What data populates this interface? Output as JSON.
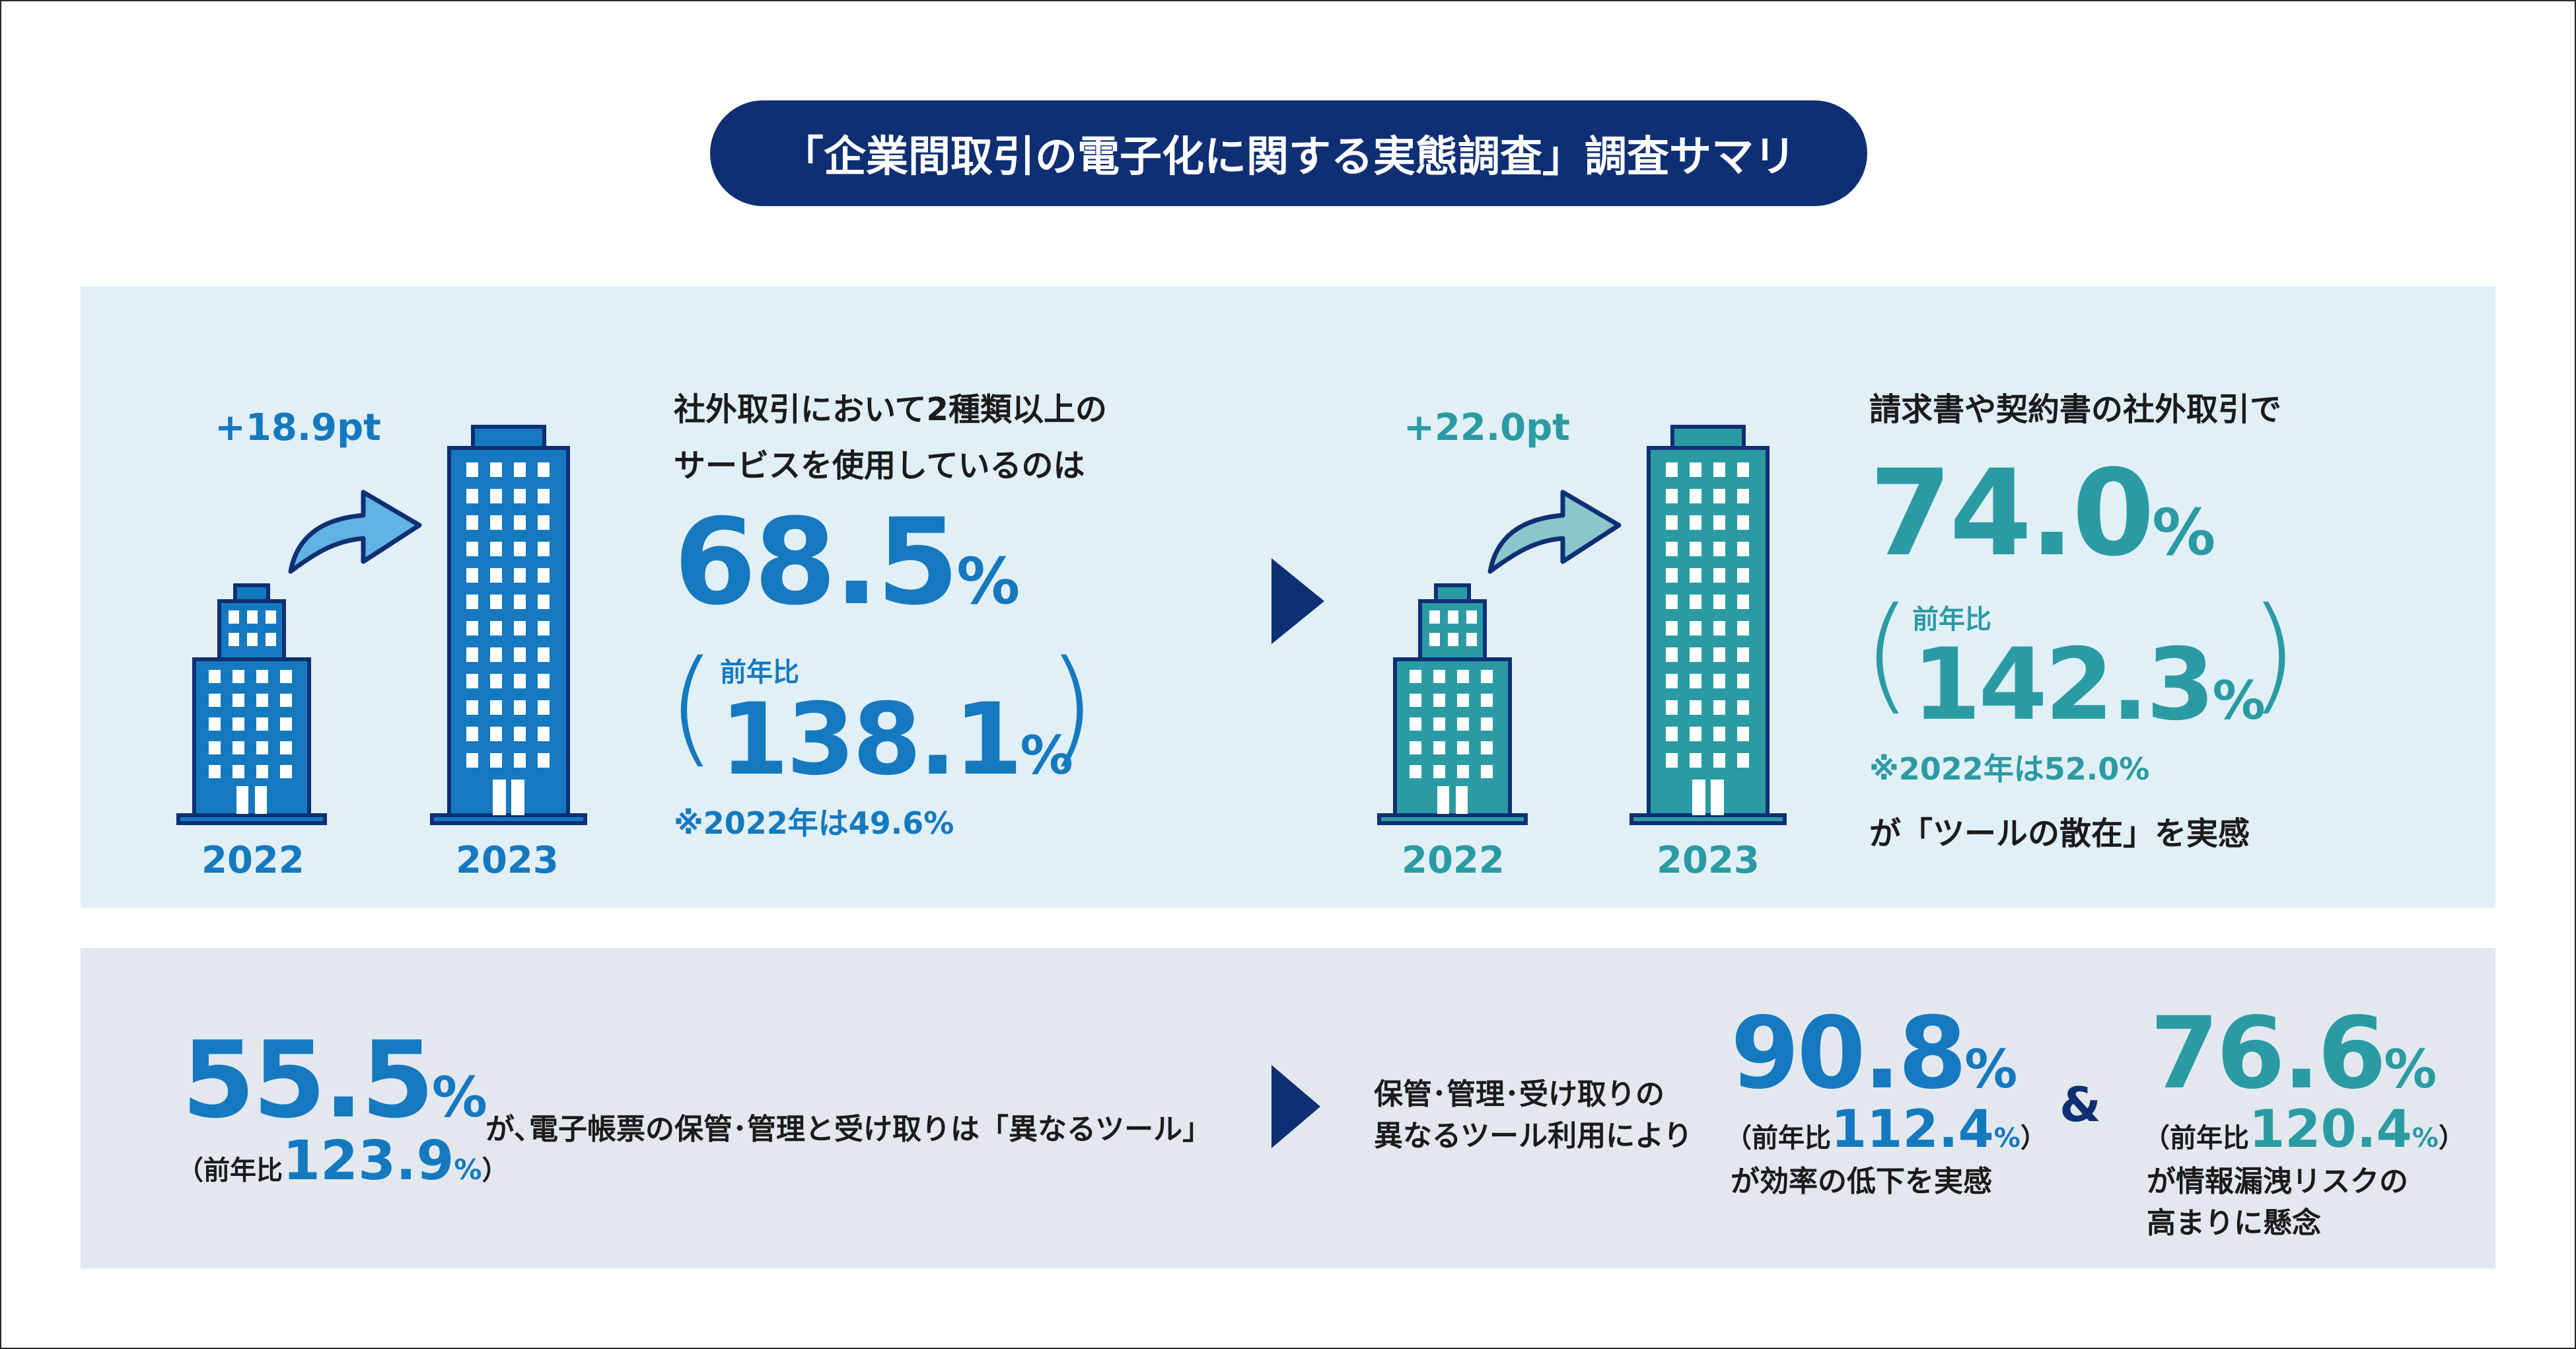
{
  "title": "「企業間取引の電子化に関する実態調査」調査サマリ",
  "colors": {
    "navy": "#0f2f74",
    "blue": "#1579bf",
    "teal": "#2b9ba3",
    "panel_top": "#e1eff7",
    "panel_bottom": "#e3e8ef"
  },
  "stat1": {
    "pt_change": "+18.9pt",
    "year_left": "2022",
    "year_right": "2023",
    "lead_line1": "社外取引において2種類以上の",
    "lead_line2": "サービスを使用しているのは",
    "value": "68.5",
    "value_unit": "%",
    "yoy_label": "前年比",
    "yoy_value": "138.1",
    "yoy_unit": "%",
    "note": "※2022年は49.6%",
    "icons": [
      "building-small-icon",
      "arrow-up-right-icon",
      "building-tall-icon"
    ]
  },
  "stat2": {
    "pt_change": "+22.0pt",
    "year_left": "2022",
    "year_right": "2023",
    "lead": "請求書や契約書の社外取引で",
    "value": "74.0",
    "value_unit": "%",
    "yoy_label": "前年比",
    "yoy_value": "142.3",
    "yoy_unit": "%",
    "note": "※2022年は52.0%",
    "tail": "が「ツールの散在」を実感",
    "icons": [
      "building-small-icon",
      "arrow-up-right-icon",
      "building-tall-icon"
    ]
  },
  "bottom": {
    "stat_value": "55.5",
    "stat_unit": "%",
    "stat_yoy_open": "（前年比",
    "stat_yoy_value": "123.9",
    "stat_yoy_unit": "%",
    "stat_yoy_close": "）",
    "stat_text": "が､電子帳票の保管･管理と受け取りは「異なるツール」",
    "mid_line1": "保管･管理･受け取りの",
    "mid_line2": "異なるツール利用により",
    "r1_value": "90.8",
    "r1_unit": "%",
    "r1_yoy_open": "（前年比",
    "r1_yoy_value": "112.4",
    "r1_yoy_unit": "%",
    "r1_yoy_close": "）",
    "r1_text": "が効率の低下を実感",
    "amp": "&",
    "r2_value": "76.6",
    "r2_unit": "%",
    "r2_yoy_open": "（前年比",
    "r2_yoy_value": "120.4",
    "r2_yoy_unit": "%",
    "r2_yoy_close": "）",
    "r2_text_line1": "が情報漏洩リスクの",
    "r2_text_line2": "高まりに懸念"
  }
}
